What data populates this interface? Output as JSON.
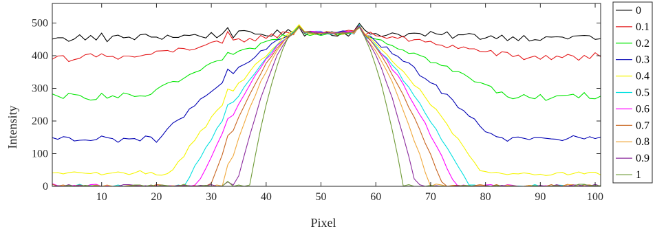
{
  "chart_data": {
    "type": "line",
    "title": "",
    "xlabel": "Pixel",
    "ylabel": "Intensity",
    "xlim": [
      1,
      101
    ],
    "ylim": [
      0,
      560
    ],
    "xticks": [
      10,
      20,
      30,
      40,
      50,
      60,
      70,
      80,
      90,
      100
    ],
    "yticks": [
      0,
      100,
      200,
      300,
      400,
      500
    ],
    "grid": false,
    "legend_position": "outside-right",
    "series": [
      {
        "name": "0",
        "color": "#000000",
        "noise": 22,
        "low": 455
      },
      {
        "name": "0.1",
        "color": "#e41a1c",
        "noise": 18,
        "low": 395
      },
      {
        "name": "0.2",
        "color": "#00e600",
        "noise": 16,
        "low": 275
      },
      {
        "name": "0.3",
        "color": "#0000b3",
        "noise": 14,
        "low": 145
      },
      {
        "name": "0.4",
        "color": "#f5f500",
        "noise": 12,
        "low": 40
      },
      {
        "name": "0.5",
        "color": "#00e0e0",
        "noise": 10,
        "low": 0
      },
      {
        "name": "0.6",
        "color": "#ff00ff",
        "noise": 10,
        "low": 0
      },
      {
        "name": "0.7",
        "color": "#c8641e",
        "noise": 10,
        "low": 0
      },
      {
        "name": "0.8",
        "color": "#f0a83c",
        "noise": 10,
        "low": 0
      },
      {
        "name": "0.9",
        "color": "#8c2c9e",
        "noise": 10,
        "low": 0
      },
      {
        "name": "1",
        "color": "#6e9a36",
        "noise": 10,
        "low": 0
      }
    ]
  }
}
